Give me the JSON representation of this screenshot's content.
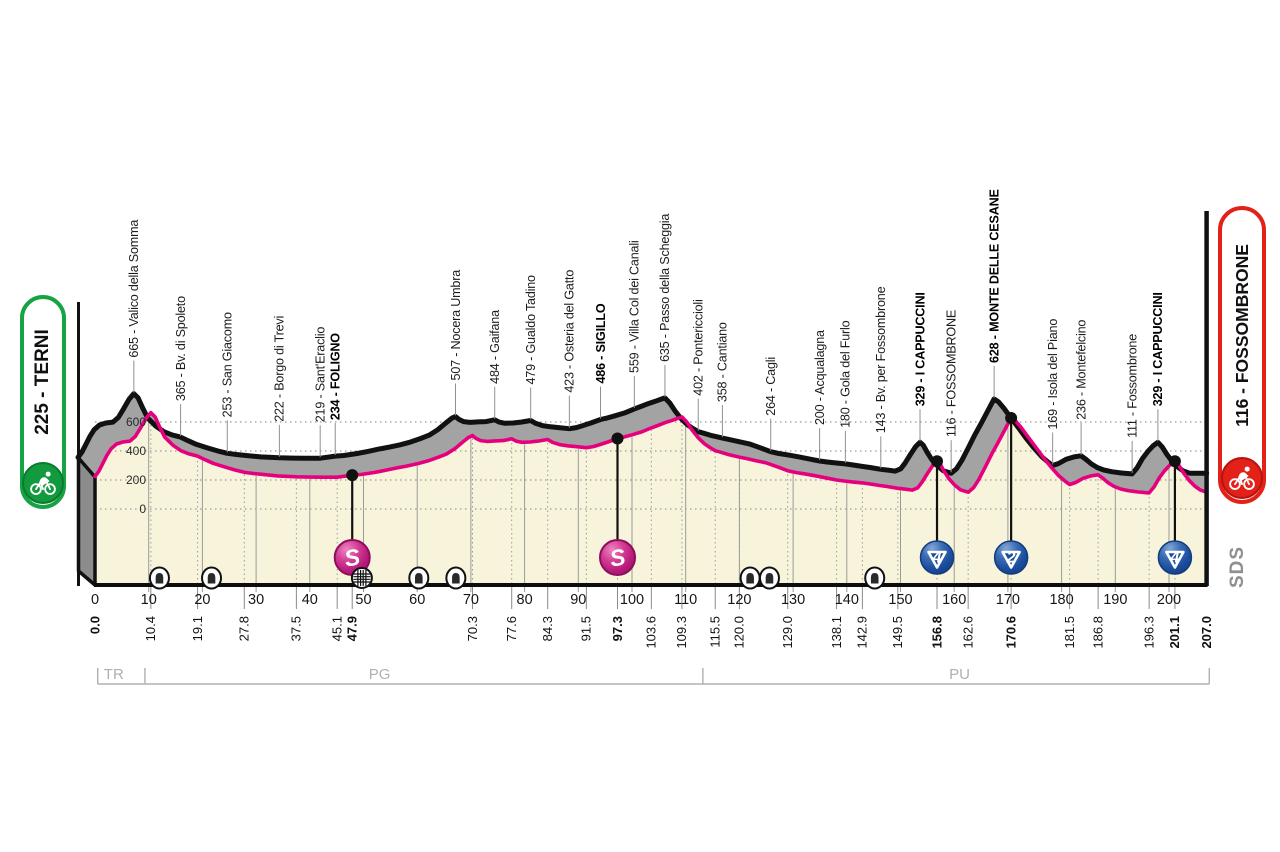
{
  "chart_data": {
    "type": "area",
    "title": "Stage elevation profile",
    "start": {
      "label": "225 - TERNI",
      "km": 0.0,
      "elev": 225,
      "color": "#17a244"
    },
    "finish": {
      "label": "116 - FOSSOMBRONE",
      "km": 207.0,
      "elev": 116,
      "color": "#e32119"
    },
    "x_axis": {
      "unit": "km",
      "min": 0,
      "max": 207,
      "ticks": [
        0,
        10,
        20,
        30,
        40,
        50,
        60,
        70,
        80,
        90,
        100,
        110,
        120,
        130,
        140,
        150,
        160,
        170,
        180,
        190,
        200
      ]
    },
    "y_axis": {
      "unit": "m",
      "gridlines": [
        0,
        200,
        400,
        600
      ]
    },
    "waypoints": [
      {
        "km": 10.4,
        "elev": 665,
        "name": "Valico della Somma",
        "bold": false,
        "icon": null
      },
      {
        "km": 19.1,
        "elev": 365,
        "name": "Bv. di Spoleto",
        "bold": false,
        "icon": null
      },
      {
        "km": 27.8,
        "elev": 253,
        "name": "San Giacomo",
        "bold": false,
        "icon": null
      },
      {
        "km": 37.5,
        "elev": 222,
        "name": "Borgo di Trevi",
        "bold": false,
        "icon": null
      },
      {
        "km": 45.1,
        "elev": 219,
        "name": "Sant'Eraclio",
        "bold": false,
        "icon": null
      },
      {
        "km": 47.9,
        "elev": 234,
        "name": "FOLIGNO",
        "bold": true,
        "icon": "sprint"
      },
      {
        "km": 70.3,
        "elev": 507,
        "name": "Nocera Umbra",
        "bold": false,
        "icon": null
      },
      {
        "km": 77.6,
        "elev": 484,
        "name": "Gaifana",
        "bold": false,
        "icon": null
      },
      {
        "km": 84.3,
        "elev": 479,
        "name": "Gualdo Tadino",
        "bold": false,
        "icon": null
      },
      {
        "km": 91.5,
        "elev": 423,
        "name": "Osteria del Gatto",
        "bold": false,
        "icon": null
      },
      {
        "km": 97.3,
        "elev": 486,
        "name": "SIGILLO",
        "bold": true,
        "icon": "sprint"
      },
      {
        "km": 103.6,
        "elev": 559,
        "name": "Villa Col dei Canali",
        "bold": false,
        "icon": null
      },
      {
        "km": 109.3,
        "elev": 635,
        "name": "Passo della Scheggia",
        "bold": false,
        "icon": null
      },
      {
        "km": 115.5,
        "elev": 402,
        "name": "Pontericcioli",
        "bold": false,
        "icon": null
      },
      {
        "km": 120.0,
        "elev": 358,
        "name": "Cantiano",
        "bold": false,
        "icon": null
      },
      {
        "km": 129.0,
        "elev": 264,
        "name": "Cagli",
        "bold": false,
        "icon": null
      },
      {
        "km": 138.1,
        "elev": 200,
        "name": "Acqualagna",
        "bold": false,
        "icon": null
      },
      {
        "km": 142.9,
        "elev": 180,
        "name": "Gola del Furlo",
        "bold": false,
        "icon": null
      },
      {
        "km": 149.5,
        "elev": 143,
        "name": "Bv. per Fossombrone",
        "bold": false,
        "icon": null
      },
      {
        "km": 156.8,
        "elev": 329,
        "name": "I CAPPUCCINI",
        "bold": true,
        "icon": "climb",
        "cat": 4
      },
      {
        "km": 162.6,
        "elev": 116,
        "name": "FOSSOMBRONE",
        "bold": false,
        "icon": null
      },
      {
        "km": 170.6,
        "elev": 628,
        "name": "MONTE DELLE CESANE",
        "bold": true,
        "icon": "climb",
        "cat": 2
      },
      {
        "km": 181.5,
        "elev": 169,
        "name": "Isola del Piano",
        "bold": false,
        "icon": null
      },
      {
        "km": 186.8,
        "elev": 236,
        "name": "Montefelcino",
        "bold": false,
        "icon": null
      },
      {
        "km": 196.3,
        "elev": 111,
        "name": "Fossombrone",
        "bold": false,
        "icon": null
      },
      {
        "km": 201.1,
        "elev": 329,
        "name": "I CAPPUCCINI",
        "bold": true,
        "icon": "climb",
        "cat": 4
      }
    ],
    "profile": [
      [
        0,
        225
      ],
      [
        0.7,
        260
      ],
      [
        1.4,
        310
      ],
      [
        2.2,
        368
      ],
      [
        3,
        415
      ],
      [
        4,
        448
      ],
      [
        5.2,
        462
      ],
      [
        6.5,
        468
      ],
      [
        7.5,
        500
      ],
      [
        8.5,
        560
      ],
      [
        9.5,
        625
      ],
      [
        10.4,
        665
      ],
      [
        11.2,
        635
      ],
      [
        12,
        570
      ],
      [
        13,
        495
      ],
      [
        14.5,
        440
      ],
      [
        16,
        402
      ],
      [
        17.5,
        380
      ],
      [
        19.1,
        365
      ],
      [
        20.5,
        340
      ],
      [
        22,
        315
      ],
      [
        24,
        292
      ],
      [
        26,
        270
      ],
      [
        27.8,
        253
      ],
      [
        29.5,
        245
      ],
      [
        31.5,
        237
      ],
      [
        34,
        228
      ],
      [
        37.5,
        222
      ],
      [
        40,
        220
      ],
      [
        42.5,
        219
      ],
      [
        45.1,
        219
      ],
      [
        46.5,
        226
      ],
      [
        47.9,
        234
      ],
      [
        49.5,
        238
      ],
      [
        52,
        252
      ],
      [
        54,
        266
      ],
      [
        56,
        282
      ],
      [
        58,
        296
      ],
      [
        60,
        312
      ],
      [
        62,
        332
      ],
      [
        64,
        358
      ],
      [
        65.5,
        380
      ],
      [
        67,
        416
      ],
      [
        68.5,
        462
      ],
      [
        69.6,
        495
      ],
      [
        70.3,
        507
      ],
      [
        70.9,
        488
      ],
      [
        71.8,
        472
      ],
      [
        73,
        466
      ],
      [
        74.5,
        470
      ],
      [
        76,
        472
      ],
      [
        77.6,
        484
      ],
      [
        78.4,
        468
      ],
      [
        79.5,
        460
      ],
      [
        81,
        462
      ],
      [
        82.5,
        468
      ],
      [
        84.3,
        479
      ],
      [
        85.2,
        460
      ],
      [
        86.5,
        444
      ],
      [
        88,
        436
      ],
      [
        89.5,
        430
      ],
      [
        91.5,
        423
      ],
      [
        92.8,
        430
      ],
      [
        94,
        444
      ],
      [
        95.5,
        462
      ],
      [
        97.3,
        486
      ],
      [
        98.6,
        497
      ],
      [
        100,
        512
      ],
      [
        101.8,
        532
      ],
      [
        103.6,
        559
      ],
      [
        104.8,
        576
      ],
      [
        106.2,
        596
      ],
      [
        107.5,
        612
      ],
      [
        108.5,
        625
      ],
      [
        109.3,
        635
      ],
      [
        110.2,
        600
      ],
      [
        111.2,
        545
      ],
      [
        112.3,
        492
      ],
      [
        113.5,
        450
      ],
      [
        114.5,
        424
      ],
      [
        115.5,
        402
      ],
      [
        116.5,
        392
      ],
      [
        118,
        375
      ],
      [
        120,
        358
      ],
      [
        121.5,
        346
      ],
      [
        123,
        334
      ],
      [
        125,
        318
      ],
      [
        127,
        292
      ],
      [
        129,
        264
      ],
      [
        130.5,
        252
      ],
      [
        132.5,
        240
      ],
      [
        134.5,
        226
      ],
      [
        136.5,
        212
      ],
      [
        138.1,
        200
      ],
      [
        139.5,
        193
      ],
      [
        141,
        187
      ],
      [
        142.9,
        180
      ],
      [
        144.5,
        172
      ],
      [
        146,
        163
      ],
      [
        147.5,
        155
      ],
      [
        149.5,
        143
      ],
      [
        150.8,
        137
      ],
      [
        152.2,
        130
      ],
      [
        153.2,
        146
      ],
      [
        154,
        185
      ],
      [
        155,
        245
      ],
      [
        156,
        300
      ],
      [
        156.8,
        329
      ],
      [
        157.4,
        310
      ],
      [
        158.1,
        262
      ],
      [
        159,
        210
      ],
      [
        160,
        168
      ],
      [
        161.2,
        132
      ],
      [
        162.6,
        116
      ],
      [
        163.6,
        146
      ],
      [
        164.6,
        205
      ],
      [
        165.8,
        290
      ],
      [
        167,
        380
      ],
      [
        168.2,
        460
      ],
      [
        169.4,
        545
      ],
      [
        170.6,
        628
      ],
      [
        171.4,
        608
      ],
      [
        172.4,
        565
      ],
      [
        173.6,
        505
      ],
      [
        175,
        435
      ],
      [
        176.5,
        360
      ],
      [
        178,
        290
      ],
      [
        179.5,
        228
      ],
      [
        180.7,
        190
      ],
      [
        181.5,
        169
      ],
      [
        182.6,
        183
      ],
      [
        184,
        212
      ],
      [
        185.5,
        228
      ],
      [
        186.8,
        236
      ],
      [
        187.7,
        212
      ],
      [
        188.7,
        180
      ],
      [
        189.8,
        155
      ],
      [
        191,
        138
      ],
      [
        192.5,
        126
      ],
      [
        194.3,
        117
      ],
      [
        196.3,
        111
      ],
      [
        197.2,
        152
      ],
      [
        198.2,
        215
      ],
      [
        199.2,
        265
      ],
      [
        200.2,
        305
      ],
      [
        201.1,
        329
      ],
      [
        201.9,
        297
      ],
      [
        202.8,
        245
      ],
      [
        203.8,
        195
      ],
      [
        204.8,
        158
      ],
      [
        205.8,
        132
      ],
      [
        207,
        116
      ]
    ],
    "tunnels": [
      12.0,
      21.7,
      60.3,
      67.2,
      122.0,
      125.6,
      145.2
    ],
    "level_crossings": [
      49.7
    ],
    "regions": {
      "boundaries_km": [
        0.5,
        9.3,
        113.2,
        207.5
      ],
      "labels": [
        {
          "text": "TR",
          "km": 3.5
        },
        {
          "text": "PG",
          "km": 53.0
        },
        {
          "text": "PU",
          "km": 161.0
        }
      ]
    },
    "watermark": "SDS",
    "colors": {
      "pink_line": "#e6007e",
      "area_cream": "#f8f4dc",
      "band_gray": "#a3a3a3",
      "side_gray": "#8c8c8c",
      "ridge_black": "#111111",
      "grid_gray": "#9a9a9a",
      "label_dark": "#1c1c1c",
      "region_gray": "#b0b0b0",
      "sds_gray": "#8f8f8f",
      "sprint_fill": "#c4287f",
      "sprint_rim": "#8e0e5c",
      "climb_fill": "#1c4e9e",
      "climb_rim": "#123c7e"
    }
  }
}
